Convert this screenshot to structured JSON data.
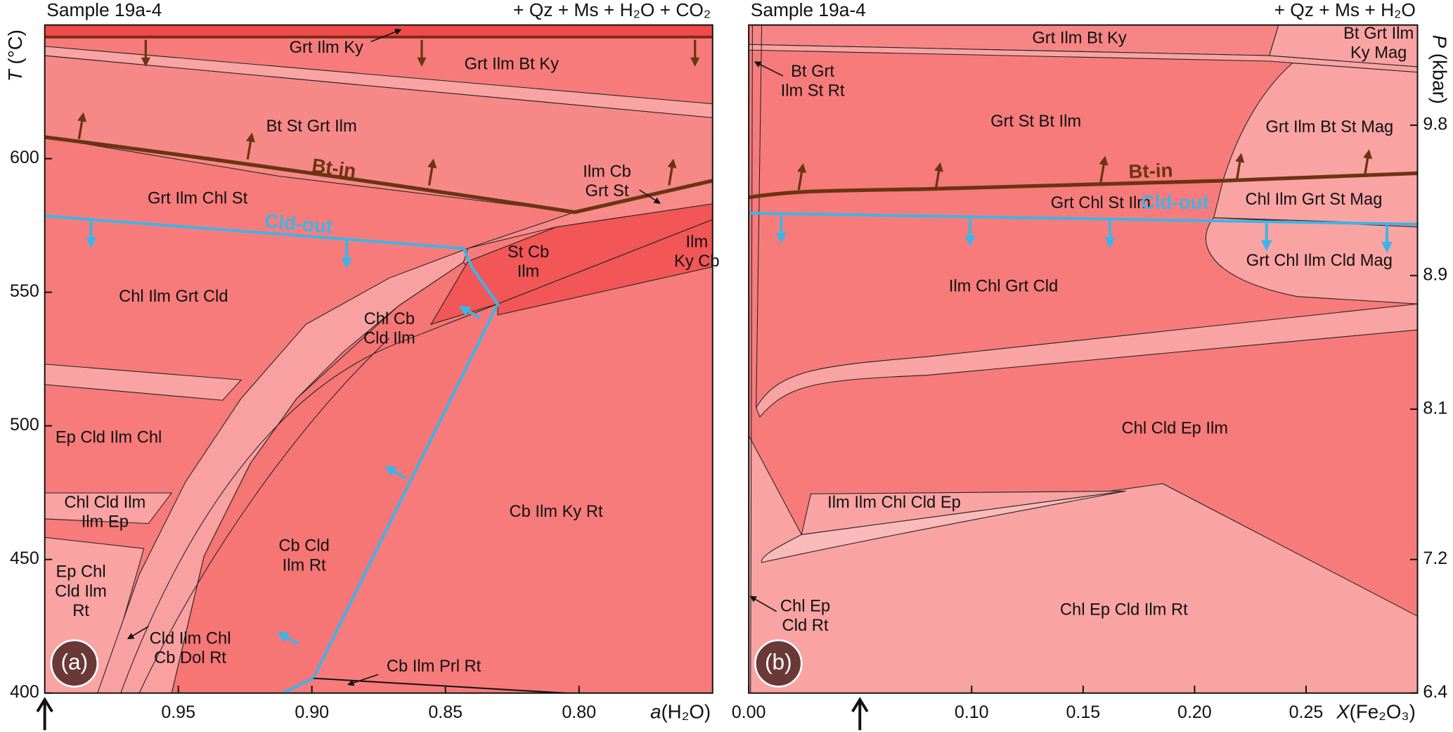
{
  "panels": [
    {
      "title": "Sample 19a-4",
      "assemblage": "+ Qz + Ms + H₂O + CO₂",
      "badge": "(a)",
      "y_axis": {
        "symbol": "T",
        "unit": " (°C)"
      },
      "x_axis": {
        "symbol": "a",
        "unit": "(H₂O)"
      },
      "xlim": [
        1,
        0.75
      ],
      "xticks": [
        0.95,
        {
          "value": 0.9,
          "label": "0.90"
        },
        0.85,
        {
          "value": 0.8,
          "label": "0.80"
        }
      ],
      "ylim": [
        400,
        650
      ],
      "yticks": [
        400,
        450,
        500,
        550,
        600
      ],
      "boundaries": {
        "bt_in": "Bt-in",
        "cld_out": "Cld-out"
      },
      "fields": [
        [
          "Grt Ilm Ky"
        ],
        [
          "Grt Ilm Bt Ky"
        ],
        [
          "Bt St Grt Ilm"
        ],
        [
          "Ilm Cb",
          "Grt St"
        ],
        [
          "Grt Ilm Chl St"
        ],
        [
          "St Cb",
          "Ilm"
        ],
        [
          "Ilm",
          "Ky Cb"
        ],
        [
          "Chl Ilm Grt Cld"
        ],
        [
          "Chl Cb",
          "Cld Ilm"
        ],
        [
          "Ep Cld Ilm Chl"
        ],
        [
          "Chl Cld Ilm",
          "Ilm Ep"
        ],
        [
          "Ep Chl",
          "Cld Ilm",
          "Rt"
        ],
        [
          "Cb Cld",
          "Ilm Rt"
        ],
        [
          "Cb Ilm Ky Rt"
        ],
        [
          "Cld Ilm Chl",
          "Cb Dol Rt"
        ],
        [
          "Cb Ilm Prl Rt"
        ]
      ]
    },
    {
      "title": "Sample 19a-4",
      "assemblage": "+ Qz + Ms + H₂O",
      "badge": "(b)",
      "y_axis": {
        "symbol": "P",
        "unit": " (kbar)"
      },
      "x_axis": {
        "symbol": "X",
        "unit": "(Fe₂O₃)"
      },
      "xlim": [
        0,
        0.3
      ],
      "xticks": [
        {
          "value": 0,
          "label": "0.00"
        },
        {
          "value": 0.1,
          "label": "0.10"
        },
        0.15,
        {
          "value": 0.2,
          "label": "0.20"
        },
        0.25
      ],
      "ylim": [
        6.4,
        10.4
      ],
      "yticks": [
        6.4,
        7.2,
        8.1,
        8.9,
        9.8
      ],
      "boundaries": {
        "bt_in": "Bt-in",
        "cld_out": "Cld-out"
      },
      "fields": [
        [
          "Grt Ilm Bt Ky"
        ],
        [
          "Bt Grt Ilm",
          "Ky Mag"
        ],
        [
          "Bt Grt",
          "Ilm St Rt"
        ],
        [
          "Grt St Bt Ilm"
        ],
        [
          "Grt Ilm Bt St Mag"
        ],
        [
          "Grt Chl St Ilm"
        ],
        [
          "Chl Ilm Grt St Mag"
        ],
        [
          "Ilm Chl Grt Cld"
        ],
        [
          "Grt Chl Ilm Cld Mag"
        ],
        [
          "Chl Cld Ep Ilm"
        ],
        [
          "Ilm Ilm Chl Cld Ep"
        ],
        [
          "Chl Ep",
          "Cld Rt"
        ],
        [
          "Chl Ep Cld Ilm Rt"
        ]
      ]
    }
  ]
}
